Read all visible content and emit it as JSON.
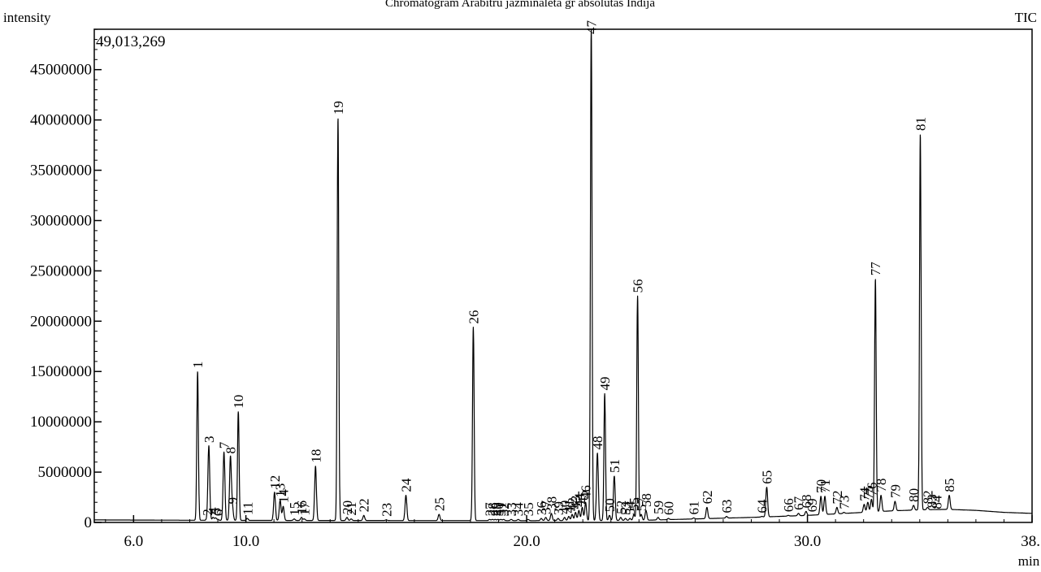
{
  "chart_data": {
    "type": "line",
    "title": "Chromatogram Arabitru jazminaleta gr absolutas Indija",
    "ylabel": "intensity",
    "xlabel": "min",
    "trace_label": "TIC",
    "max_label": "49,013,269",
    "xlim": [
      4.6,
      38.0
    ],
    "ylim": [
      0,
      49013269
    ],
    "x_ticks": [
      6.0,
      10.0,
      20.0,
      30.0,
      38.0
    ],
    "x_tick_labels": [
      "6.0",
      "10.0",
      "20.0",
      "30.0",
      "38."
    ],
    "y_ticks": [
      0,
      5000000,
      10000000,
      15000000,
      20000000,
      25000000,
      30000000,
      35000000,
      40000000,
      45000000
    ],
    "y_tick_labels": [
      "0",
      "5000000",
      "10000000",
      "15000000",
      "20000000",
      "25000000",
      "30000000",
      "35000000",
      "40000000",
      "45000000"
    ],
    "grid": false,
    "series": [
      {
        "name": "TIC",
        "baseline": [
          [
            4.6,
            250000
          ],
          [
            10,
            200000
          ],
          [
            20,
            180000
          ],
          [
            24,
            200000
          ],
          [
            26,
            350000
          ],
          [
            28,
            500000
          ],
          [
            30,
            700000
          ],
          [
            31,
            850000
          ],
          [
            32,
            1000000
          ],
          [
            33,
            1150000
          ],
          [
            34,
            1250000
          ],
          [
            35,
            1300000
          ],
          [
            36,
            1200000
          ],
          [
            37,
            1000000
          ],
          [
            38,
            900000
          ]
        ],
        "peaks": [
          {
            "label": "1",
            "x": 8.28,
            "y": 15000000
          },
          {
            "label": "2",
            "x": 8.62,
            "y": 350000
          },
          {
            "label": "3",
            "x": 8.68,
            "y": 7600000
          },
          {
            "label": "4",
            "x": 8.83,
            "y": 500000
          },
          {
            "label": "5",
            "x": 8.92,
            "y": 450000
          },
          {
            "label": "6",
            "x": 9.0,
            "y": 300000
          },
          {
            "label": "7",
            "x": 9.22,
            "y": 7000000
          },
          {
            "label": "8",
            "x": 9.45,
            "y": 6500000
          },
          {
            "label": "9",
            "x": 9.52,
            "y": 1500000
          },
          {
            "label": "10",
            "x": 9.73,
            "y": 11000000
          },
          {
            "label": "11",
            "x": 10.05,
            "y": 400000
          },
          {
            "label": "12",
            "x": 11.02,
            "y": 3000000
          },
          {
            "label": "13",
            "x": 11.22,
            "y": 2200000
          },
          {
            "label": "14",
            "x": 11.33,
            "y": 1600000
          },
          {
            "label": "15",
            "x": 11.72,
            "y": 350000
          },
          {
            "label": "16",
            "x": 11.98,
            "y": 500000
          },
          {
            "label": "17",
            "x": 12.08,
            "y": 350000
          },
          {
            "label": "18",
            "x": 12.48,
            "y": 5600000
          },
          {
            "label": "19",
            "x": 13.28,
            "y": 40200000
          },
          {
            "label": "20",
            "x": 13.6,
            "y": 500000
          },
          {
            "label": "21",
            "x": 13.75,
            "y": 350000
          },
          {
            "label": "22",
            "x": 14.2,
            "y": 700000
          },
          {
            "label": "23",
            "x": 15.0,
            "y": 250000
          },
          {
            "label": "24",
            "x": 15.7,
            "y": 2700000
          },
          {
            "label": "25",
            "x": 16.88,
            "y": 800000
          },
          {
            "label": "26",
            "x": 18.1,
            "y": 19400000
          },
          {
            "label": "27",
            "x": 18.68,
            "y": 300000
          },
          {
            "label": "28",
            "x": 18.78,
            "y": 300000
          },
          {
            "label": "29",
            "x": 18.88,
            "y": 300000
          },
          {
            "label": "30",
            "x": 18.98,
            "y": 300000
          },
          {
            "label": "31",
            "x": 19.08,
            "y": 300000
          },
          {
            "label": "32",
            "x": 19.18,
            "y": 300000
          },
          {
            "label": "33",
            "x": 19.45,
            "y": 300000
          },
          {
            "label": "34",
            "x": 19.7,
            "y": 300000
          },
          {
            "label": "35",
            "x": 20.05,
            "y": 300000
          },
          {
            "label": "36",
            "x": 20.52,
            "y": 400000
          },
          {
            "label": "37",
            "x": 20.68,
            "y": 500000
          },
          {
            "label": "38",
            "x": 20.88,
            "y": 900000
          },
          {
            "label": "39",
            "x": 21.12,
            "y": 400000
          },
          {
            "label": "40",
            "x": 21.35,
            "y": 500000
          },
          {
            "label": "41",
            "x": 21.5,
            "y": 600000
          },
          {
            "label": "42",
            "x": 21.62,
            "y": 800000
          },
          {
            "label": "43",
            "x": 21.74,
            "y": 1000000
          },
          {
            "label": "44",
            "x": 21.86,
            "y": 1200000
          },
          {
            "label": "45",
            "x": 21.98,
            "y": 1500000
          },
          {
            "label": "46",
            "x": 22.1,
            "y": 2000000
          },
          {
            "label": "47",
            "x": 22.3,
            "y": 49013269
          },
          {
            "label": "48",
            "x": 22.52,
            "y": 6900000
          },
          {
            "label": "49",
            "x": 22.78,
            "y": 12800000
          },
          {
            "label": "50",
            "x": 22.95,
            "y": 700000
          },
          {
            "label": "51",
            "x": 23.12,
            "y": 4600000
          },
          {
            "label": "52",
            "x": 23.35,
            "y": 500000
          },
          {
            "label": "53",
            "x": 23.52,
            "y": 400000
          },
          {
            "label": "54",
            "x": 23.68,
            "y": 400000
          },
          {
            "label": "55",
            "x": 23.82,
            "y": 800000
          },
          {
            "label": "56",
            "x": 23.95,
            "y": 22500000
          },
          {
            "label": "57",
            "x": 24.08,
            "y": 800000
          },
          {
            "label": "58",
            "x": 24.25,
            "y": 1200000
          },
          {
            "label": "59",
            "x": 24.68,
            "y": 500000
          },
          {
            "label": "60",
            "x": 25.05,
            "y": 400000
          },
          {
            "label": "61",
            "x": 25.95,
            "y": 450000
          },
          {
            "label": "62",
            "x": 26.42,
            "y": 1500000
          },
          {
            "label": "63",
            "x": 27.12,
            "y": 600000
          },
          {
            "label": "64",
            "x": 28.38,
            "y": 600000
          },
          {
            "label": "65",
            "x": 28.55,
            "y": 3500000
          },
          {
            "label": "66",
            "x": 29.32,
            "y": 700000
          },
          {
            "label": "67",
            "x": 29.68,
            "y": 900000
          },
          {
            "label": "68",
            "x": 29.95,
            "y": 1100000
          },
          {
            "label": "69",
            "x": 30.15,
            "y": 700000
          },
          {
            "label": "70",
            "x": 30.48,
            "y": 2600000
          },
          {
            "label": "71",
            "x": 30.62,
            "y": 2600000
          },
          {
            "label": "72",
            "x": 31.05,
            "y": 1500000
          },
          {
            "label": "73",
            "x": 31.3,
            "y": 1000000
          },
          {
            "label": "74",
            "x": 32.02,
            "y": 1800000
          },
          {
            "label": "75",
            "x": 32.15,
            "y": 2000000
          },
          {
            "label": "76",
            "x": 32.28,
            "y": 2300000
          },
          {
            "label": "77",
            "x": 32.42,
            "y": 24200000
          },
          {
            "label": "78",
            "x": 32.62,
            "y": 2700000
          },
          {
            "label": "79",
            "x": 33.12,
            "y": 2100000
          },
          {
            "label": "80",
            "x": 33.78,
            "y": 1700000
          },
          {
            "label": "81",
            "x": 34.02,
            "y": 38600000
          },
          {
            "label": "82",
            "x": 34.28,
            "y": 1500000
          },
          {
            "label": "83",
            "x": 34.42,
            "y": 1100000
          },
          {
            "label": "84",
            "x": 34.6,
            "y": 1000000
          },
          {
            "label": "85",
            "x": 35.05,
            "y": 2700000
          }
        ]
      }
    ]
  }
}
